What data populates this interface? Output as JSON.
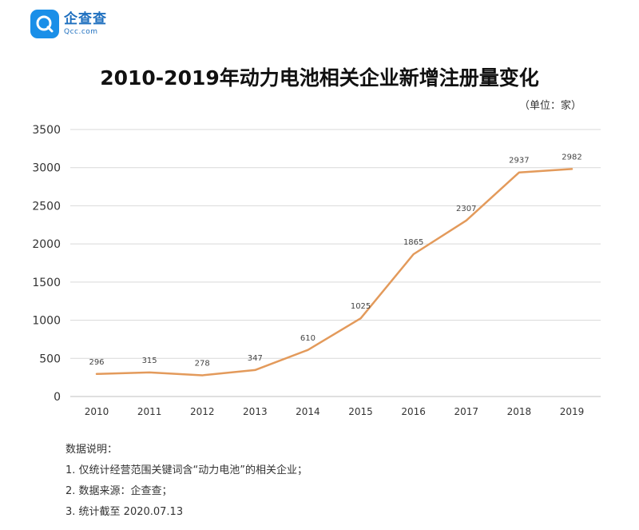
{
  "brand": {
    "name": "企查查",
    "domain": "Qcc.com",
    "color": "#1a8fe8",
    "icon": "qcc-logo-icon"
  },
  "header": {
    "unit": "（单位：家）"
  },
  "chart_data": {
    "type": "line",
    "title": "2010-2019年动力电池相关企业新增注册量变化",
    "xlabel": "",
    "ylabel": "",
    "categories": [
      "2010",
      "2011",
      "2012",
      "2013",
      "2014",
      "2015",
      "2016",
      "2017",
      "2018",
      "2019"
    ],
    "values": [
      296,
      315,
      278,
      347,
      610,
      1025,
      1865,
      2307,
      2937,
      2982
    ],
    "ylim": [
      0,
      3500
    ],
    "yticks": [
      0,
      500,
      1000,
      1500,
      2000,
      2500,
      3000,
      3500
    ],
    "grid": true,
    "line_color": "#e39a5b"
  },
  "notes": {
    "heading": "数据说明：",
    "items": [
      "1. 仅统计经营范围关键词含“动力电池”的相关企业；",
      "2. 数据来源：企查查；",
      "3. 统计截至 2020.07.13"
    ]
  }
}
